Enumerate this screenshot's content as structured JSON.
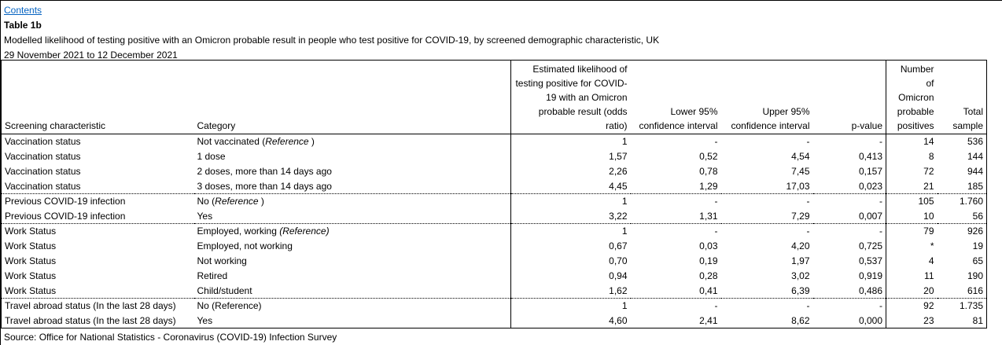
{
  "header_area": {
    "contents_link": "Contents",
    "table_label": "Table 1b",
    "title": "Modelled likelihood of testing positive with an Omicron probable result in people who test positive for COVID-19, by screened demographic characteristic, UK",
    "date_range": "29 November 2021 to 12 December 2021"
  },
  "table": {
    "column_headers": {
      "screening_characteristic": "Screening characteristic",
      "category": "Category",
      "odds_ratio": "Estimated likelihood of\ntesting positive for COVID-\n19 with an Omicron\nprobable result (odds\nratio)",
      "lower_ci": "Lower 95%\nconfidence interval",
      "upper_ci": "Upper 95%\nconfidence interval",
      "p_value": "p-value",
      "omicron_positives": "Number\nof\nOmicron\nprobable\npositives",
      "total_sample": "Total\nsample"
    },
    "rows": [
      {
        "screening_characteristic": "Vaccination status",
        "category_pre": "Not vaccinated (",
        "category_em": "Reference",
        "category_post": " )",
        "odds_ratio": "1",
        "lower_ci": "-",
        "upper_ci": "-",
        "p_value": "-",
        "omicron_positives": "14",
        "total_sample": "536",
        "separator_above": false
      },
      {
        "screening_characteristic": "Vaccination status",
        "category_pre": "1 dose",
        "category_em": "",
        "category_post": "",
        "odds_ratio": "1,57",
        "lower_ci": "0,52",
        "upper_ci": "4,54",
        "p_value": "0,413",
        "omicron_positives": "8",
        "total_sample": "144",
        "separator_above": false
      },
      {
        "screening_characteristic": "Vaccination status",
        "category_pre": "2 doses, more than 14 days ago",
        "category_em": "",
        "category_post": "",
        "odds_ratio": "2,26",
        "lower_ci": "0,78",
        "upper_ci": "7,45",
        "p_value": "0,157",
        "omicron_positives": "72",
        "total_sample": "944",
        "separator_above": false
      },
      {
        "screening_characteristic": "Vaccination status",
        "category_pre": "3 doses, more than 14 days ago",
        "category_em": "",
        "category_post": "",
        "odds_ratio": "4,45",
        "lower_ci": "1,29",
        "upper_ci": "17,03",
        "p_value": "0,023",
        "omicron_positives": "21",
        "total_sample": "185",
        "separator_above": false
      },
      {
        "screening_characteristic": "Previous COVID-19 infection",
        "category_pre": "No (",
        "category_em": "Reference",
        "category_post": " )",
        "odds_ratio": "1",
        "lower_ci": "-",
        "upper_ci": "-",
        "p_value": "-",
        "omicron_positives": "105",
        "total_sample": "1.760",
        "separator_above": true
      },
      {
        "screening_characteristic": "Previous COVID-19 infection",
        "category_pre": "Yes",
        "category_em": "",
        "category_post": "",
        "odds_ratio": "3,22",
        "lower_ci": "1,31",
        "upper_ci": "7,29",
        "p_value": "0,007",
        "omicron_positives": "10",
        "total_sample": "56",
        "separator_above": false
      },
      {
        "screening_characteristic": "Work Status",
        "category_pre": "Employed, working ",
        "category_em": "(Reference)",
        "category_post": "",
        "odds_ratio": "1",
        "lower_ci": "-",
        "upper_ci": "-",
        "p_value": "-",
        "omicron_positives": "79",
        "total_sample": "926",
        "separator_above": true
      },
      {
        "screening_characteristic": "Work Status",
        "category_pre": "Employed, not working",
        "category_em": "",
        "category_post": "",
        "odds_ratio": "0,67",
        "lower_ci": "0,03",
        "upper_ci": "4,20",
        "p_value": "0,725",
        "omicron_positives": "*",
        "total_sample": "19",
        "separator_above": false
      },
      {
        "screening_characteristic": "Work Status",
        "category_pre": "Not working",
        "category_em": "",
        "category_post": "",
        "odds_ratio": "0,70",
        "lower_ci": "0,19",
        "upper_ci": "1,97",
        "p_value": "0,537",
        "omicron_positives": "4",
        "total_sample": "65",
        "separator_above": false
      },
      {
        "screening_characteristic": "Work Status",
        "category_pre": "Retired",
        "category_em": "",
        "category_post": "",
        "odds_ratio": "0,94",
        "lower_ci": "0,28",
        "upper_ci": "3,02",
        "p_value": "0,919",
        "omicron_positives": "11",
        "total_sample": "190",
        "separator_above": false
      },
      {
        "screening_characteristic": "Work Status",
        "category_pre": "Child/student",
        "category_em": "",
        "category_post": "",
        "odds_ratio": "1,62",
        "lower_ci": "0,41",
        "upper_ci": "6,39",
        "p_value": "0,486",
        "omicron_positives": "20",
        "total_sample": "616",
        "separator_above": false
      },
      {
        "screening_characteristic": "Travel abroad status (In the last 28 days)",
        "category_pre": "No (Reference)",
        "category_em": "",
        "category_post": "",
        "odds_ratio": "1",
        "lower_ci": "-",
        "upper_ci": "-",
        "p_value": "-",
        "omicron_positives": "92",
        "total_sample": "1.735",
        "separator_above": true
      },
      {
        "screening_characteristic": "Travel abroad status (In the last 28 days)",
        "category_pre": "Yes",
        "category_em": "",
        "category_post": "",
        "odds_ratio": "4,60",
        "lower_ci": "2,41",
        "upper_ci": "8,62",
        "p_value": "0,000",
        "omicron_positives": "23",
        "total_sample": "81",
        "separator_above": false
      }
    ]
  },
  "footer": {
    "source": "Source: Office for National Statistics - Coronavirus (COVID-19) Infection Survey"
  },
  "colors": {
    "hyperlink": "#0563c1",
    "text": "#000000",
    "border": "#000000",
    "background": "#ffffff"
  }
}
